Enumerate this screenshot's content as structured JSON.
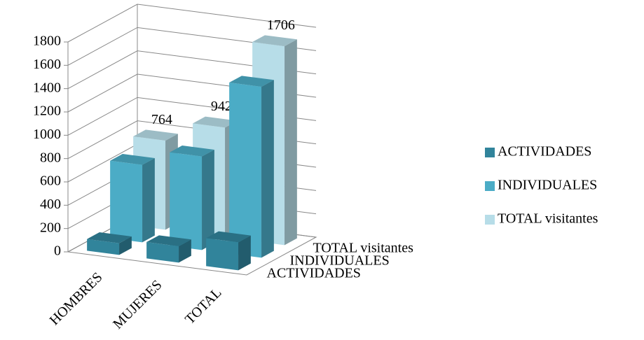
{
  "chart_data": {
    "type": "bar3d",
    "categories": [
      "HOMBRES",
      "MUJERES",
      "TOTAL"
    ],
    "series": [
      {
        "name": "ACTIVIDADES",
        "color": "#31849b",
        "values": [
          100,
          140,
          240
        ]
      },
      {
        "name": "INDIVIDUALES",
        "color": "#4bacc6",
        "values": [
          664,
          802,
          1466
        ]
      },
      {
        "name": "TOTAL visitantes",
        "color": "#b7dde8",
        "values": [
          764,
          942,
          1706
        ]
      }
    ],
    "data_labels_series": [
      2
    ],
    "ylim": [
      0,
      1800
    ],
    "yticks": [
      0,
      200,
      400,
      600,
      800,
      1000,
      1200,
      1400,
      1600,
      1800
    ],
    "grid": true,
    "legend": "right"
  }
}
